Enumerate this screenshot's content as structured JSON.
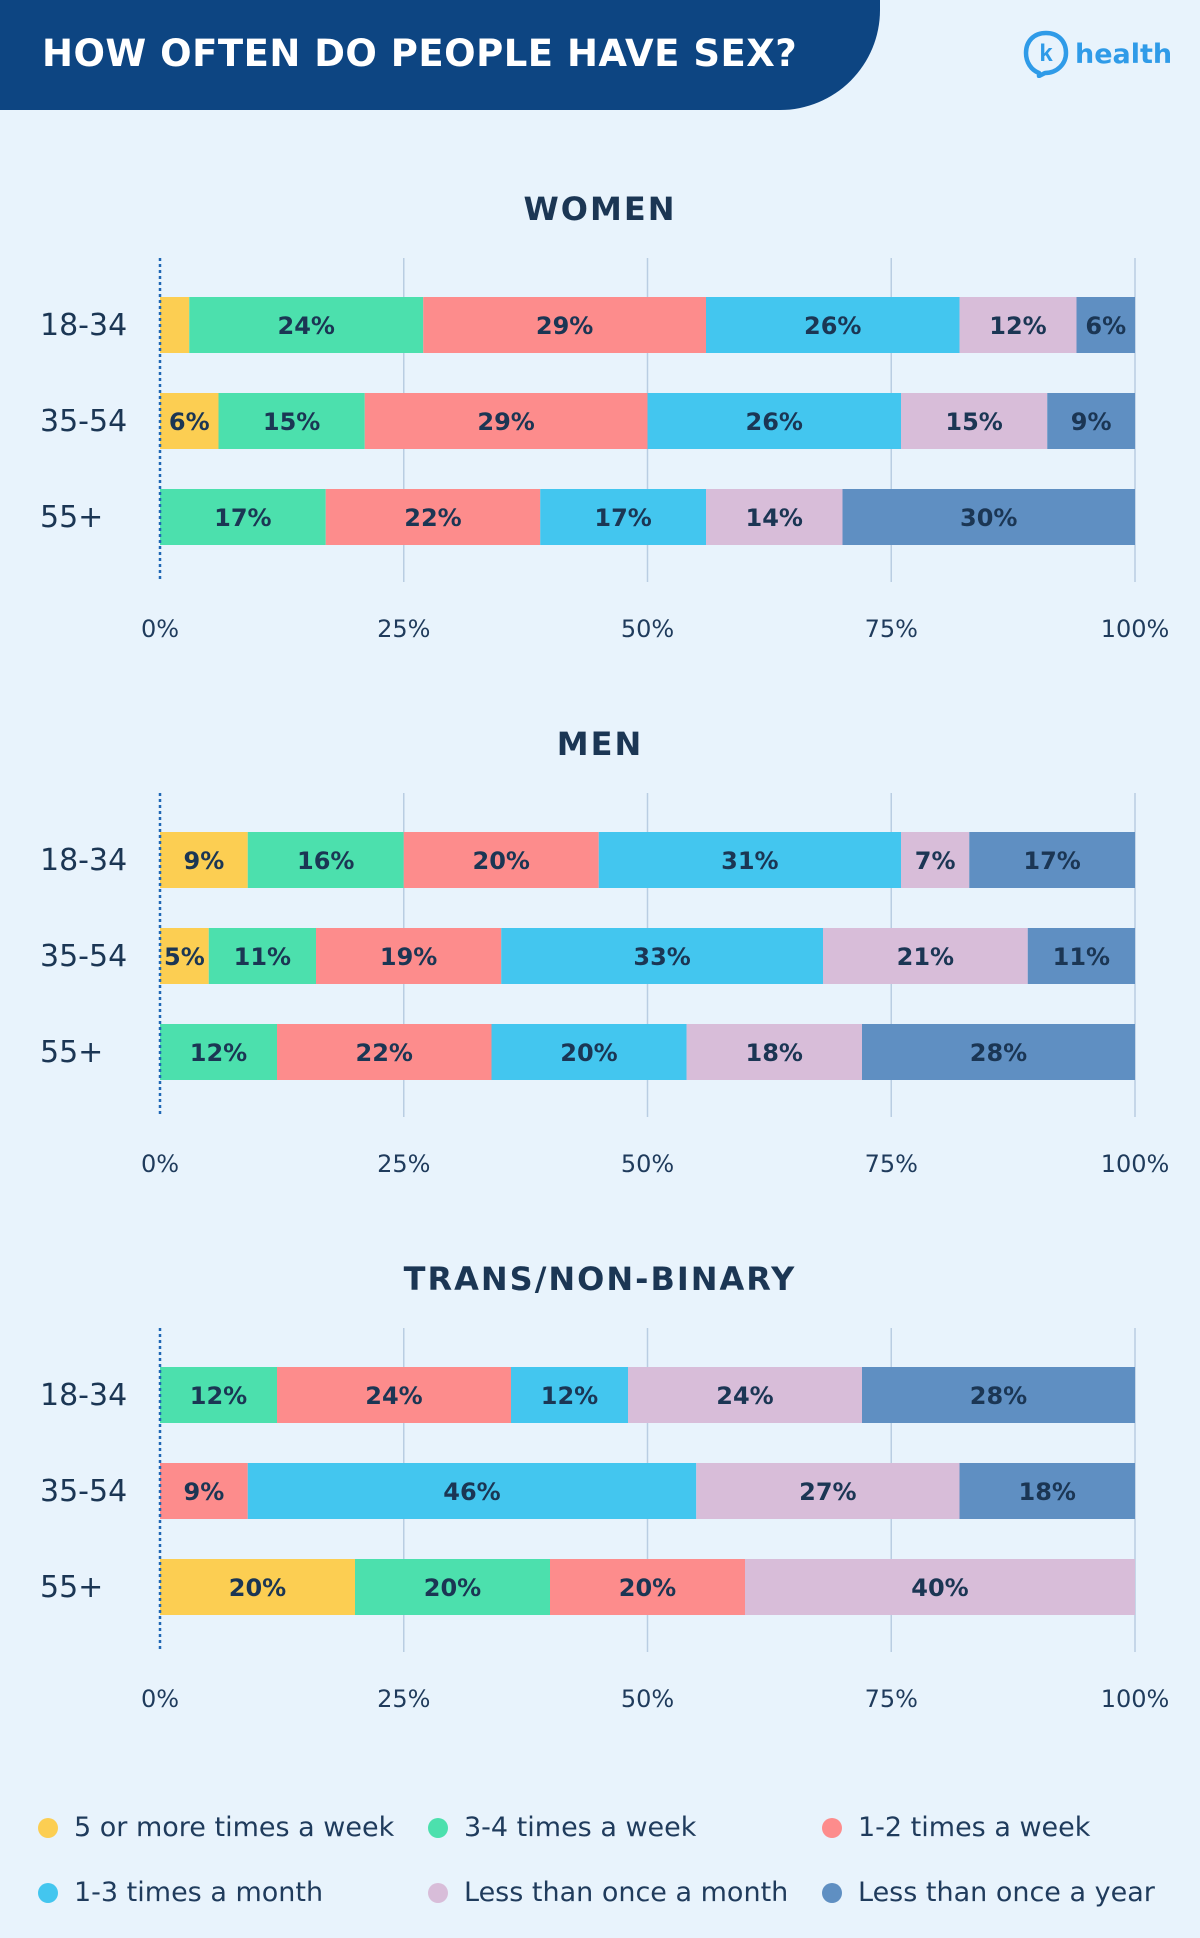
{
  "header": {
    "title": "HOW OFTEN DO PEOPLE HAVE SEX?",
    "logo_letter": "k",
    "logo_word": "health"
  },
  "colors": {
    "5plus": "#fcce52",
    "3to4": "#4ce0ad",
    "1to2": "#fd8c8c",
    "1to3month": "#43c6ef",
    "lessmonth": "#d8bdd9",
    "lessyear": "#5f8fc2",
    "text": "#1f3b5c",
    "bar_label": "#1b3654"
  },
  "legend": [
    {
      "key": "5plus",
      "label": "5 or more times a week"
    },
    {
      "key": "3to4",
      "label": "3-4 times a week"
    },
    {
      "key": "1to2",
      "label": "1-2 times a week"
    },
    {
      "key": "1to3month",
      "label": "1-3 times a month"
    },
    {
      "key": "lessmonth",
      "label": "Less than once a month"
    },
    {
      "key": "lessyear",
      "label": "Less than once a year"
    }
  ],
  "chart_data": [
    {
      "type": "bar",
      "orientation": "horizontal",
      "stacked": true,
      "title": "WOMEN",
      "xlim": [
        0,
        100
      ],
      "x_ticks": [
        "0%",
        "25%",
        "50%",
        "75%",
        "100%"
      ],
      "categories": [
        "18-34",
        "35-54",
        "55+"
      ],
      "series": [
        {
          "name": "5 or more times a week",
          "key": "5plus",
          "values": [
            3,
            6,
            0
          ],
          "labels": [
            "",
            "6%",
            ""
          ]
        },
        {
          "name": "3-4 times a week",
          "key": "3to4",
          "values": [
            24,
            15,
            17
          ],
          "labels": [
            "24%",
            "15%",
            "17%"
          ]
        },
        {
          "name": "1-2 times a week",
          "key": "1to2",
          "values": [
            29,
            29,
            22
          ],
          "labels": [
            "29%",
            "29%",
            "22%"
          ]
        },
        {
          "name": "1-3 times a month",
          "key": "1to3month",
          "values": [
            26,
            26,
            17
          ],
          "labels": [
            "26%",
            "26%",
            "17%"
          ]
        },
        {
          "name": "Less than once a month",
          "key": "lessmonth",
          "values": [
            12,
            15,
            14
          ],
          "labels": [
            "12%",
            "15%",
            "14%"
          ]
        },
        {
          "name": "Less than once a year",
          "key": "lessyear",
          "values": [
            6,
            9,
            30
          ],
          "labels": [
            "6%",
            "9%",
            "30%"
          ]
        }
      ]
    },
    {
      "type": "bar",
      "orientation": "horizontal",
      "stacked": true,
      "title": "MEN",
      "xlim": [
        0,
        100
      ],
      "x_ticks": [
        "0%",
        "25%",
        "50%",
        "75%",
        "100%"
      ],
      "categories": [
        "18-34",
        "35-54",
        "55+"
      ],
      "series": [
        {
          "name": "5 or more times a week",
          "key": "5plus",
          "values": [
            9,
            5,
            0
          ],
          "labels": [
            "9%",
            "5%",
            ""
          ]
        },
        {
          "name": "3-4 times a week",
          "key": "3to4",
          "values": [
            16,
            11,
            12
          ],
          "labels": [
            "16%",
            "11%",
            "12%"
          ]
        },
        {
          "name": "1-2 times a week",
          "key": "1to2",
          "values": [
            20,
            19,
            22
          ],
          "labels": [
            "20%",
            "19%",
            "22%"
          ]
        },
        {
          "name": "1-3 times a month",
          "key": "1to3month",
          "values": [
            31,
            33,
            20
          ],
          "labels": [
            "31%",
            "33%",
            "20%"
          ]
        },
        {
          "name": "Less than once a month",
          "key": "lessmonth",
          "values": [
            7,
            21,
            18
          ],
          "labels": [
            "7%",
            "21%",
            "18%"
          ]
        },
        {
          "name": "Less than once a year",
          "key": "lessyear",
          "values": [
            17,
            11,
            28
          ],
          "labels": [
            "17%",
            "11%",
            "28%"
          ]
        }
      ]
    },
    {
      "type": "bar",
      "orientation": "horizontal",
      "stacked": true,
      "title": "TRANS/NON-BINARY",
      "xlim": [
        0,
        100
      ],
      "x_ticks": [
        "0%",
        "25%",
        "50%",
        "75%",
        "100%"
      ],
      "categories": [
        "18-34",
        "35-54",
        "55+"
      ],
      "series": [
        {
          "name": "5 or more times a week",
          "key": "5plus",
          "values": [
            0,
            0,
            20
          ],
          "labels": [
            "",
            "",
            "20%"
          ]
        },
        {
          "name": "3-4 times a week",
          "key": "3to4",
          "values": [
            12,
            0,
            20
          ],
          "labels": [
            "12%",
            "",
            "20%"
          ]
        },
        {
          "name": "1-2 times a week",
          "key": "1to2",
          "values": [
            24,
            9,
            20
          ],
          "labels": [
            "24%",
            "9%",
            "20%"
          ]
        },
        {
          "name": "1-3 times a month",
          "key": "1to3month",
          "values": [
            12,
            46,
            0
          ],
          "labels": [
            "12%",
            "46%",
            ""
          ]
        },
        {
          "name": "Less than once a month",
          "key": "lessmonth",
          "values": [
            24,
            27,
            40
          ],
          "labels": [
            "24%",
            "27%",
            "40%"
          ]
        },
        {
          "name": "Less than once a year",
          "key": "lessyear",
          "values": [
            28,
            18,
            0
          ],
          "labels": [
            "28%",
            "18%",
            ""
          ]
        }
      ]
    }
  ]
}
